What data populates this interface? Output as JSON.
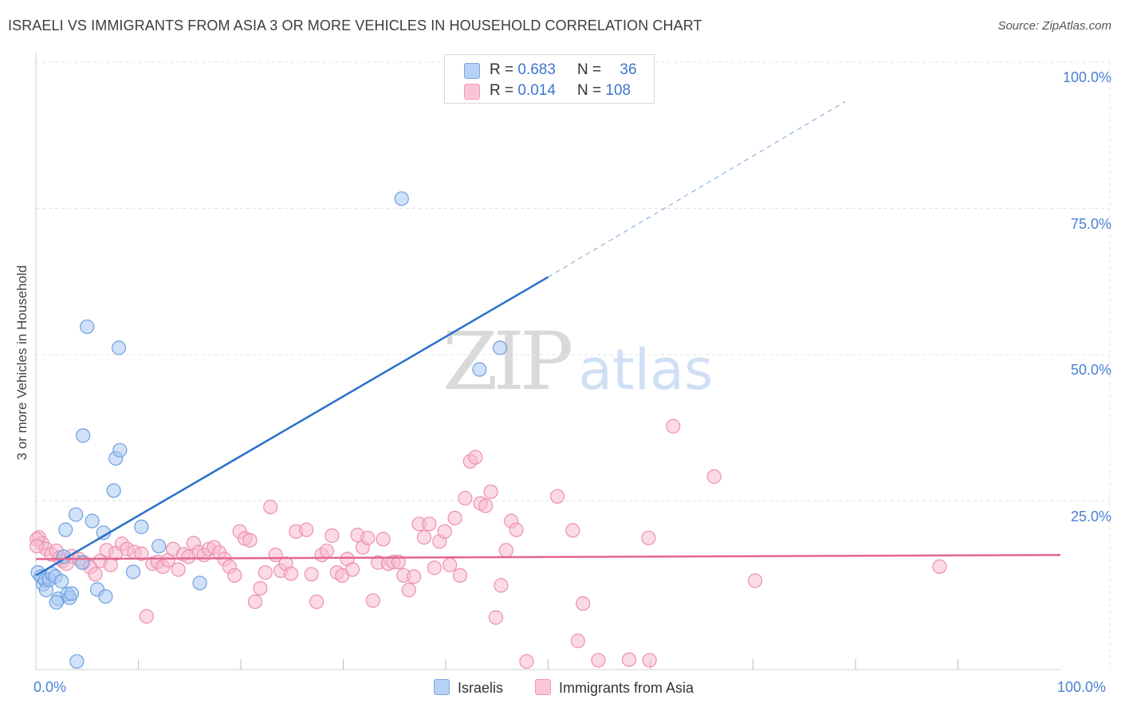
{
  "header": {
    "title": "ISRAELI VS IMMIGRANTS FROM ASIA 3 OR MORE VEHICLES IN HOUSEHOLD CORRELATION CHART",
    "source": "Source: ZipAtlas.com"
  },
  "watermark": {
    "zip": "ZIP",
    "atlas": "atlas"
  },
  "legend": {
    "series1": {
      "r_label": "R = ",
      "r_value": "0.683",
      "n_label": "N = ",
      "n_value": "36"
    },
    "series2": {
      "r_label": "R = ",
      "r_value": "0.014",
      "n_label": "N = ",
      "n_value": "108"
    }
  },
  "bottom_legend": {
    "series1": "Israelis",
    "series2": "Immigrants from Asia"
  },
  "colors": {
    "blue_fill": "#a9c8f2",
    "blue_stroke": "#6f9fe0",
    "blue_line": "#2b6fcb",
    "pink_fill": "#f7bcd0",
    "pink_stroke": "#ec8fb0",
    "pink_line": "#e2668f",
    "grid": "#e3e3e3",
    "axis_text": "#4a7fd4"
  },
  "chart_data": {
    "type": "scatter",
    "title": "ISRAELI VS IMMIGRANTS FROM ASIA 3 OR MORE VEHICLES IN HOUSEHOLD CORRELATION CHART",
    "xlabel": "",
    "ylabel": "3 or more Vehicles in Household",
    "xlim": [
      0,
      100
    ],
    "ylim": [
      0,
      100
    ],
    "x_tick_labels": [
      "0.0%",
      "100.0%"
    ],
    "y_ticks": [
      25,
      50,
      75,
      100
    ],
    "y_tick_labels": [
      "25.0%",
      "50.0%",
      "75.0%",
      "100.0%"
    ],
    "grid": true,
    "legend_position": "top-center",
    "series": [
      {
        "name": "Israelis",
        "r": 0.683,
        "n": 36,
        "trend": {
          "x0": 0,
          "y0": 15.0,
          "x1": 50,
          "y1": 66.0,
          "dashed_to_x": 79,
          "dashed_to_y": 96.0
        },
        "points": [
          [
            0.2,
            15.5
          ],
          [
            0.5,
            14.8
          ],
          [
            0.7,
            13.5
          ],
          [
            0.9,
            14.2
          ],
          [
            1.0,
            12.5
          ],
          [
            1.3,
            14.3
          ],
          [
            1.6,
            15.2
          ],
          [
            1.9,
            14.8
          ],
          [
            2.2,
            11.0
          ],
          [
            2.0,
            10.4
          ],
          [
            2.5,
            14.0
          ],
          [
            2.7,
            18.2
          ],
          [
            2.9,
            22.8
          ],
          [
            3.1,
            11.8
          ],
          [
            3.3,
            11.2
          ],
          [
            3.5,
            11.9
          ],
          [
            3.9,
            25.4
          ],
          [
            4.5,
            17.2
          ],
          [
            4.6,
            38.9
          ],
          [
            5.0,
            57.5
          ],
          [
            5.5,
            24.3
          ],
          [
            6.0,
            12.6
          ],
          [
            6.6,
            22.3
          ],
          [
            6.8,
            11.4
          ],
          [
            7.6,
            29.5
          ],
          [
            7.8,
            35.0
          ],
          [
            8.2,
            36.4
          ],
          [
            8.1,
            53.9
          ],
          [
            9.5,
            15.6
          ],
          [
            10.3,
            23.3
          ],
          [
            12.0,
            20.0
          ],
          [
            16.0,
            13.7
          ],
          [
            35.7,
            79.4
          ],
          [
            43.3,
            50.2
          ],
          [
            45.3,
            53.9
          ],
          [
            4.0,
            0.3
          ]
        ]
      },
      {
        "name": "Immigrants from Asia",
        "r": 0.014,
        "n": 108,
        "trend": {
          "x0": 0,
          "y0": 17.8,
          "x1": 100,
          "y1": 18.5
        },
        "points": [
          [
            0.3,
            21.5
          ],
          [
            0.6,
            20.5
          ],
          [
            1.0,
            19.5
          ],
          [
            1.5,
            18.6
          ],
          [
            2.0,
            19.2
          ],
          [
            2.3,
            18.0
          ],
          [
            2.6,
            17.5
          ],
          [
            3.0,
            17.0
          ],
          [
            3.5,
            18.3
          ],
          [
            4.2,
            17.8
          ],
          [
            4.7,
            17.2
          ],
          [
            5.3,
            16.4
          ],
          [
            5.8,
            15.2
          ],
          [
            6.3,
            17.5
          ],
          [
            6.9,
            19.3
          ],
          [
            7.3,
            16.8
          ],
          [
            7.8,
            18.8
          ],
          [
            8.4,
            20.4
          ],
          [
            8.9,
            19.5
          ],
          [
            9.6,
            19.0
          ],
          [
            10.3,
            18.7
          ],
          [
            10.8,
            8.0
          ],
          [
            11.4,
            17.0
          ],
          [
            11.9,
            17.3
          ],
          [
            12.4,
            16.5
          ],
          [
            12.9,
            17.6
          ],
          [
            13.4,
            19.5
          ],
          [
            13.9,
            16.0
          ],
          [
            14.4,
            18.6
          ],
          [
            14.9,
            18.2
          ],
          [
            15.4,
            20.5
          ],
          [
            15.9,
            19.0
          ],
          [
            16.4,
            18.5
          ],
          [
            16.9,
            19.5
          ],
          [
            17.4,
            19.8
          ],
          [
            17.9,
            18.9
          ],
          [
            18.4,
            17.8
          ],
          [
            18.9,
            16.5
          ],
          [
            19.4,
            15.0
          ],
          [
            19.9,
            22.5
          ],
          [
            20.4,
            21.3
          ],
          [
            20.9,
            21.0
          ],
          [
            21.4,
            10.5
          ],
          [
            21.9,
            12.8
          ],
          [
            22.4,
            15.5
          ],
          [
            22.9,
            26.7
          ],
          [
            23.4,
            18.5
          ],
          [
            23.9,
            15.8
          ],
          [
            24.4,
            17.0
          ],
          [
            24.9,
            15.3
          ],
          [
            25.4,
            22.5
          ],
          [
            26.4,
            22.8
          ],
          [
            26.9,
            15.2
          ],
          [
            27.4,
            10.5
          ],
          [
            27.9,
            18.5
          ],
          [
            28.4,
            19.2
          ],
          [
            28.9,
            21.8
          ],
          [
            29.4,
            15.5
          ],
          [
            29.9,
            15.0
          ],
          [
            30.4,
            17.8
          ],
          [
            30.9,
            16.0
          ],
          [
            31.4,
            21.9
          ],
          [
            31.9,
            19.8
          ],
          [
            32.4,
            21.4
          ],
          [
            32.9,
            10.7
          ],
          [
            33.4,
            17.2
          ],
          [
            33.9,
            21.2
          ],
          [
            34.4,
            17.0
          ],
          [
            34.9,
            17.3
          ],
          [
            35.4,
            17.3
          ],
          [
            35.9,
            15.0
          ],
          [
            36.4,
            12.5
          ],
          [
            36.9,
            14.8
          ],
          [
            37.4,
            23.8
          ],
          [
            37.9,
            21.5
          ],
          [
            38.4,
            23.8
          ],
          [
            38.9,
            16.3
          ],
          [
            39.4,
            20.8
          ],
          [
            39.9,
            22.5
          ],
          [
            40.4,
            16.8
          ],
          [
            40.9,
            24.8
          ],
          [
            41.4,
            15.0
          ],
          [
            41.9,
            28.2
          ],
          [
            42.4,
            34.5
          ],
          [
            42.9,
            35.2
          ],
          [
            43.4,
            27.3
          ],
          [
            43.9,
            26.9
          ],
          [
            44.4,
            29.3
          ],
          [
            44.9,
            7.8
          ],
          [
            45.4,
            13.3
          ],
          [
            45.9,
            19.3
          ],
          [
            46.4,
            24.3
          ],
          [
            46.9,
            22.8
          ],
          [
            47.9,
            0.3
          ],
          [
            50.9,
            28.5
          ],
          [
            52.4,
            22.7
          ],
          [
            52.9,
            3.8
          ],
          [
            53.4,
            10.2
          ],
          [
            54.9,
            0.5
          ],
          [
            57.9,
            0.6
          ],
          [
            59.9,
            0.5
          ],
          [
            59.8,
            21.4
          ],
          [
            62.2,
            40.5
          ],
          [
            66.2,
            31.9
          ],
          [
            70.2,
            14.1
          ],
          [
            88.2,
            16.5
          ],
          [
            0.1,
            21.2
          ],
          [
            0.1,
            20.0
          ]
        ]
      }
    ]
  }
}
